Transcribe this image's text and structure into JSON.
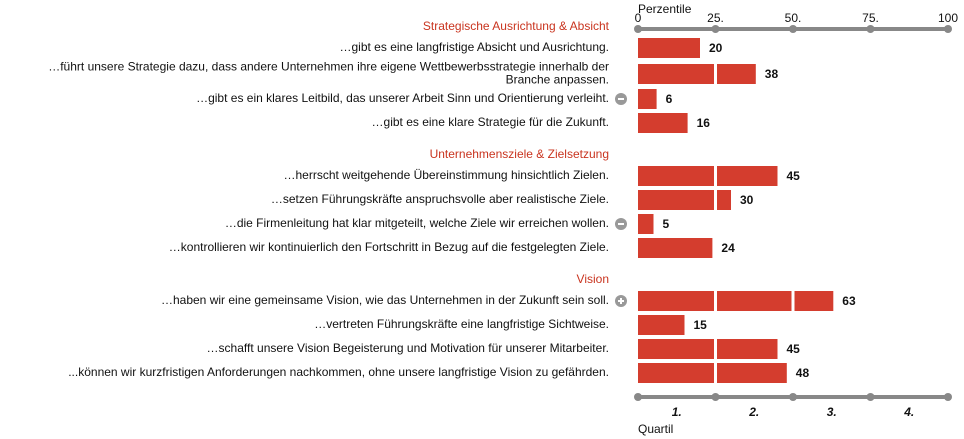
{
  "chart_data": {
    "type": "bar",
    "xlim": [
      0,
      100
    ],
    "color": "#d43d2e",
    "group_title_color": "#c9341f",
    "top_axis": {
      "label": "Perzentile",
      "ticks": [
        0,
        {
          "value": 25,
          "label": "25."
        },
        {
          "value": 50,
          "label": "50."
        },
        {
          "value": 75,
          "label": "75."
        },
        100
      ]
    },
    "bottom_axis": {
      "label": "Quartil",
      "ticks": [
        {
          "value": 12.5,
          "label": "1."
        },
        {
          "value": 37.5,
          "label": "2."
        },
        {
          "value": 62.5,
          "label": "3."
        },
        {
          "value": 87.5,
          "label": "4."
        }
      ]
    },
    "groups": [
      {
        "title": "Strategische Ausrichtung & Absicht",
        "rows": [
          {
            "label": [
              "…gibt es eine langfristige Absicht und Ausrichtung."
            ],
            "value": 20
          },
          {
            "label": [
              "…führt unsere Strategie dazu, dass andere Unternehmen ihre eigene Wettbewerbsstrategie innerhalb der",
              "Branche anpassen."
            ],
            "value": 38
          },
          {
            "label": [
              "…gibt es ein klares Leitbild, das unserer Arbeit Sinn und Orientierung verleiht."
            ],
            "value": 6,
            "marker": "minus"
          },
          {
            "label": [
              "…gibt es eine klare Strategie für die Zukunft."
            ],
            "value": 16
          }
        ]
      },
      {
        "title": "Unternehmensziele & Zielsetzung",
        "rows": [
          {
            "label": [
              "…herrscht weitgehende Übereinstimmung hinsichtlich Zielen."
            ],
            "value": 45
          },
          {
            "label": [
              "…setzen Führungskräfte anspruchsvolle aber realistische Ziele."
            ],
            "value": 30
          },
          {
            "label": [
              "…die Firmenleitung hat klar mitgeteilt, welche Ziele wir erreichen wollen."
            ],
            "value": 5,
            "marker": "minus"
          },
          {
            "label": [
              "…kontrollieren wir kontinuierlich den Fortschritt in Bezug auf die festgelegten Ziele."
            ],
            "value": 24
          }
        ]
      },
      {
        "title": "Vision",
        "rows": [
          {
            "label": [
              "…haben wir eine gemeinsame Vision, wie das Unternehmen in der Zukunft sein soll."
            ],
            "value": 63,
            "marker": "plus"
          },
          {
            "label": [
              "…vertreten Führungskräfte eine langfristige Sichtweise."
            ],
            "value": 15
          },
          {
            "label": [
              "…schafft unsere Vision Begeisterung und Motivation für unserer Mitarbeiter."
            ],
            "value": 45
          },
          {
            "label": [
              "...können wir kurzfristigen Anforderungen nachkommen, ohne unsere langfristige Vision zu gefährden."
            ],
            "value": 48
          }
        ]
      }
    ]
  }
}
